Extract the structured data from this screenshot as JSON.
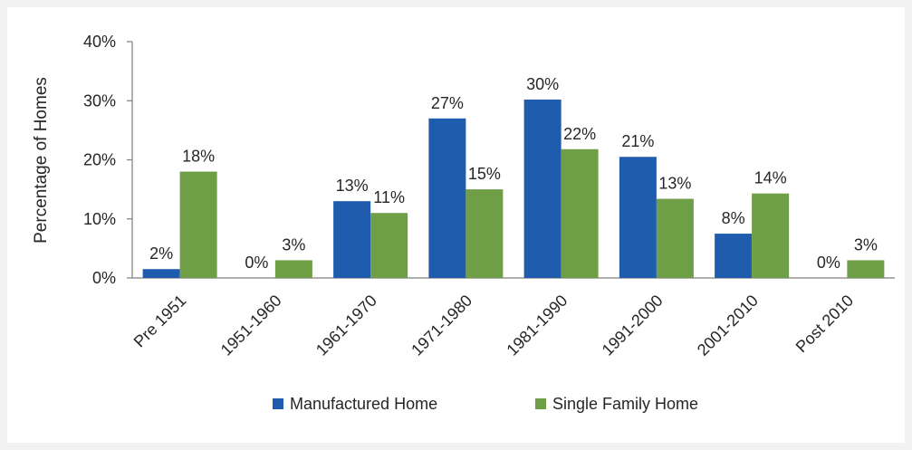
{
  "chart_data": {
    "type": "bar",
    "title": "",
    "xlabel": "",
    "ylabel": "Percentage of Homes",
    "ylim": [
      0,
      40
    ],
    "yticks": [
      "0%",
      "10%",
      "20%",
      "30%",
      "40%"
    ],
    "ytick_values": [
      0,
      10,
      20,
      30,
      40
    ],
    "grid": false,
    "legend_position": "bottom",
    "categories": [
      "Pre 1951",
      "1951-1960",
      "1961-1970",
      "1971-1980",
      "1981-1990",
      "1991-2000",
      "2001-2010",
      "Post 2010"
    ],
    "series": [
      {
        "name": "Manufactured Home",
        "color": "#1f5cae",
        "values": [
          1.5,
          0,
          13,
          27,
          30.2,
          20.5,
          7.5,
          0
        ],
        "labels": [
          "2%",
          "0%",
          "13%",
          "27%",
          "30%",
          "21%",
          "8%",
          "0%"
        ]
      },
      {
        "name": "Single Family Home",
        "color": "#6e9e45",
        "values": [
          18,
          3,
          11,
          15,
          21.8,
          13.4,
          14.3,
          3
        ],
        "labels": [
          "18%",
          "3%",
          "11%",
          "15%",
          "22%",
          "13%",
          "14%",
          "3%"
        ]
      }
    ]
  }
}
